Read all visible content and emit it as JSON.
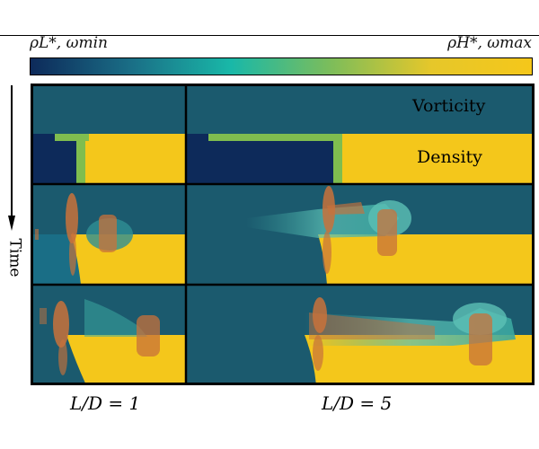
{
  "colorbar": {
    "left_label": "ρL*, ωmin",
    "right_label": "ρH*, ωmax",
    "stops": [
      "#0d2a5a",
      "#1a6e86",
      "#19b8a8",
      "#7dbd5a",
      "#e6c72a",
      "#f5c71a"
    ]
  },
  "axis": {
    "time_label": "Time"
  },
  "row_legend": {
    "vorticity": "Vorticity",
    "density": "Density"
  },
  "columns": [
    {
      "label": "L/D = 1"
    },
    {
      "label": "L/D = 5"
    }
  ],
  "colors": {
    "vorticity_bg": "#1b5a6e",
    "density_light": "#0d2a5a",
    "density_heavy": "#f4c71b",
    "interface_green": "#7fbd4f",
    "wake_teal": "#3aa7a0",
    "iso_orange": "#c8723b",
    "frame": "#000000"
  }
}
